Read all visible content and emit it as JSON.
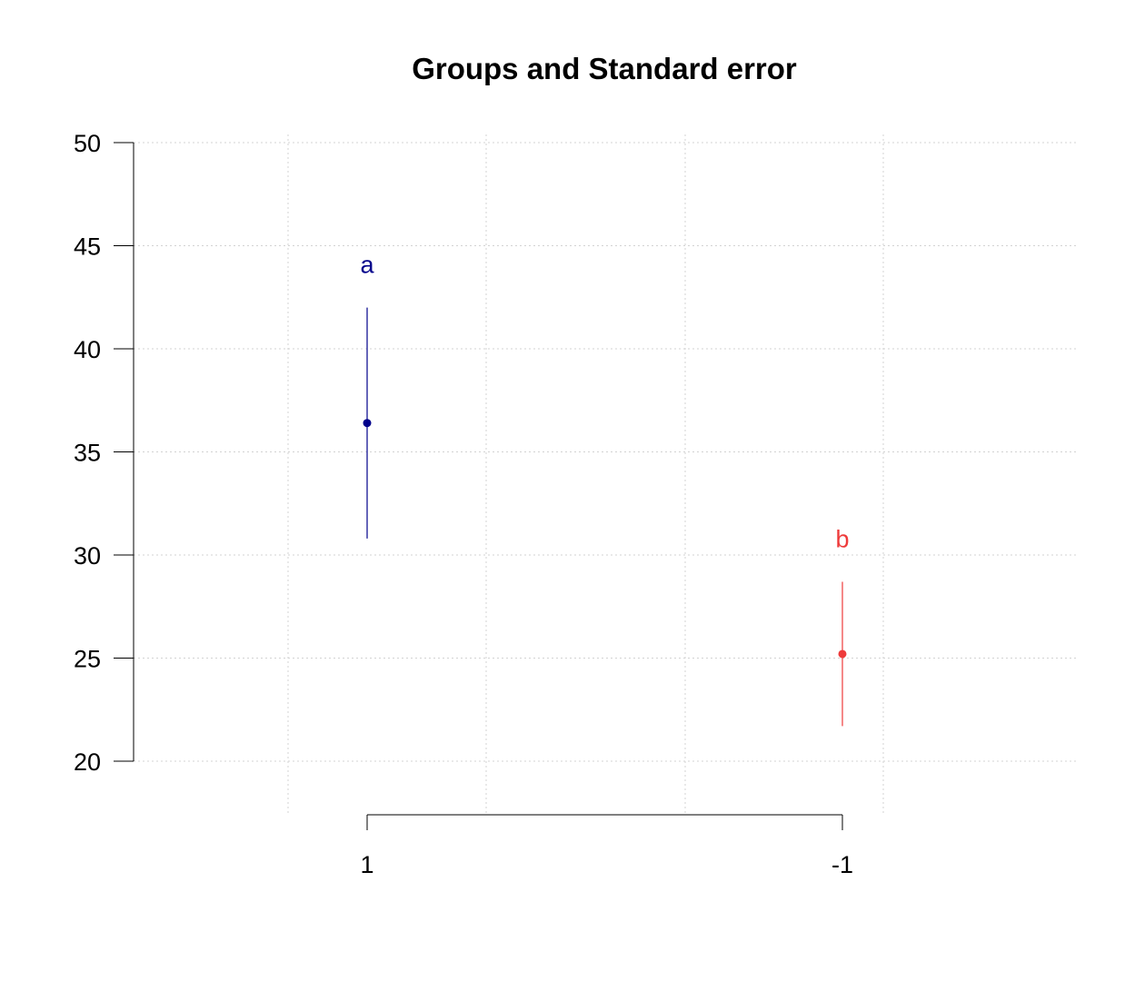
{
  "chart_data": {
    "type": "scatter",
    "title": "Groups and Standard error",
    "xlabel": "",
    "ylabel": "",
    "ylim": [
      20,
      50
    ],
    "y_ticks": [
      20,
      25,
      30,
      35,
      40,
      45,
      50
    ],
    "categories": [
      "1",
      "-1"
    ],
    "grid": true,
    "points": [
      {
        "category": "1",
        "mean": 36.4,
        "lower": 30.8,
        "upper": 42.0,
        "group_label": "a",
        "color": "#00008b"
      },
      {
        "category": "-1",
        "mean": 25.2,
        "lower": 21.7,
        "upper": 28.7,
        "group_label": "b",
        "color": "#ee3b3b"
      }
    ]
  }
}
